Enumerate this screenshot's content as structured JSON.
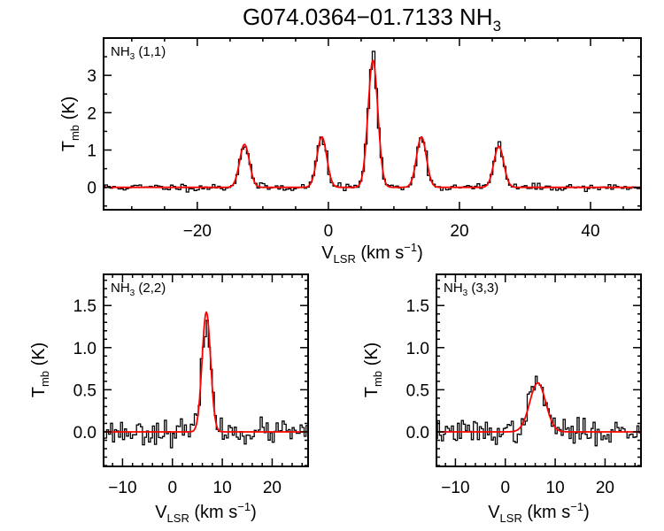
{
  "chart_data": [
    {
      "type": "line",
      "title_main": "G074.0364−01.7133 NH",
      "title_sub": "3",
      "panel_label": {
        "main": "NH",
        "sub": "3",
        "rest": " (1,1)"
      },
      "xlabel": {
        "main": "V",
        "sub": "LSR",
        "rest": " (km s",
        "sup": "−1",
        "close": ")"
      },
      "ylabel": {
        "main": "T",
        "sub": "mb",
        "rest": " (K)"
      },
      "xlim": [
        -34.3,
        47.7
      ],
      "ylim": [
        -0.6,
        4.0
      ],
      "xticks": [
        -20,
        0,
        20,
        40
      ],
      "xtick_labels": [
        "−20",
        "0",
        "20",
        "40"
      ],
      "yticks": [
        0,
        1,
        2,
        3
      ],
      "ytick_labels": [
        "0",
        "1",
        "2",
        "3"
      ],
      "xminor": 5,
      "yminor": 0.5,
      "series": [
        {
          "name": "observed spectrum",
          "color": "#000000",
          "style": "histogram",
          "channel_width": 0.4,
          "noise_rms": 0.05,
          "seed": 11
        },
        {
          "name": "hyperfine fit",
          "color": "#ff0000",
          "components": [
            {
              "v": -12.8,
              "amp": 1.15,
              "sigma": 0.75
            },
            {
              "v": -1.0,
              "amp": 1.35,
              "sigma": 0.75
            },
            {
              "v": 6.8,
              "amp": 3.4,
              "sigma": 0.75
            },
            {
              "v": 14.2,
              "amp": 1.35,
              "sigma": 0.75
            },
            {
              "v": 26.0,
              "amp": 1.1,
              "sigma": 0.75
            }
          ]
        }
      ]
    },
    {
      "type": "line",
      "panel_label": {
        "main": "NH",
        "sub": "3",
        "rest": " (2,2)"
      },
      "xlabel": {
        "main": "V",
        "sub": "LSR",
        "rest": " (km s",
        "sup": "−1",
        "close": ")"
      },
      "ylabel": {
        "main": "T",
        "sub": "mb",
        "rest": " (K)"
      },
      "xlim": [
        -13.8,
        27.2
      ],
      "ylim": [
        -0.41,
        1.87
      ],
      "xticks": [
        -10,
        0,
        10,
        20
      ],
      "xtick_labels": [
        "−10",
        "0",
        "10",
        "20"
      ],
      "yticks": [
        0,
        0.5,
        1.0,
        1.5
      ],
      "ytick_labels": [
        "0.0",
        "0.5",
        "1.0",
        "1.5"
      ],
      "xminor": 2,
      "yminor": 0.1,
      "series": [
        {
          "name": "observed spectrum",
          "color": "#000000",
          "style": "histogram",
          "channel_width": 0.4,
          "noise_rms": 0.07,
          "seed": 23
        },
        {
          "name": "gaussian fit",
          "color": "#ff0000",
          "components": [
            {
              "v": 6.8,
              "amp": 1.42,
              "sigma": 0.85
            }
          ]
        }
      ]
    },
    {
      "type": "line",
      "panel_label": {
        "main": "NH",
        "sub": "3",
        "rest": " (3,3)"
      },
      "xlabel": {
        "main": "V",
        "sub": "LSR",
        "rest": " (km s",
        "sup": "−1",
        "close": ")"
      },
      "ylabel": {
        "main": "T",
        "sub": "mb",
        "rest": " (K)"
      },
      "xlim": [
        -13.8,
        27.2
      ],
      "ylim": [
        -0.41,
        1.87
      ],
      "xticks": [
        -10,
        0,
        10,
        20
      ],
      "xtick_labels": [
        "−10",
        "0",
        "10",
        "20"
      ],
      "yticks": [
        0,
        0.5,
        1.0,
        1.5
      ],
      "ytick_labels": [
        "0.0",
        "0.5",
        "1.0",
        "1.5"
      ],
      "xminor": 2,
      "yminor": 0.1,
      "series": [
        {
          "name": "observed spectrum",
          "color": "#000000",
          "style": "histogram",
          "channel_width": 0.4,
          "noise_rms": 0.07,
          "seed": 37
        },
        {
          "name": "gaussian fit",
          "color": "#ff0000",
          "components": [
            {
              "v": 6.5,
              "amp": 0.58,
              "sigma": 1.6
            }
          ]
        }
      ]
    }
  ]
}
